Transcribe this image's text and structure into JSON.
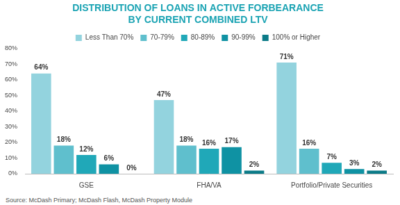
{
  "chart_data": {
    "type": "bar",
    "title": [
      "DISTRIBUTION OF LOANS IN ACTIVE FORBEARANCE",
      "BY CURRENT COMBINED LTV"
    ],
    "annotations": [
      "Source: McDash Primary; McDash Flash, McDash Property Module"
    ],
    "categories": [
      "GSE",
      "FHA/VA",
      "Portfolio/Private Securities"
    ],
    "series": [
      {
        "name": "Less Than 70%",
        "color": "#93d3de",
        "values": [
          64,
          47,
          71
        ],
        "value_labels": [
          "64%",
          "47%",
          "71%"
        ]
      },
      {
        "name": "70-79%",
        "color": "#5fbfcd",
        "values": [
          18,
          18,
          16
        ],
        "value_labels": [
          "18%",
          "18%",
          "16%"
        ]
      },
      {
        "name": "80-89%",
        "color": "#20a8b8",
        "values": [
          12,
          16,
          7
        ],
        "value_labels": [
          "12%",
          "16%",
          "7%"
        ]
      },
      {
        "name": "90-99%",
        "color": "#0f92a3",
        "values": [
          6,
          17,
          3
        ],
        "value_labels": [
          "6%",
          "17%",
          "3%"
        ]
      },
      {
        "name": "100% or Higher",
        "color": "#0b7b88",
        "values": [
          0,
          2,
          2
        ],
        "value_labels": [
          "0%",
          "2%",
          "2%"
        ]
      }
    ],
    "ylim": [
      0,
      80
    ],
    "yticks": [
      {
        "value": 0,
        "label": "0%"
      },
      {
        "value": 10,
        "label": "10%"
      },
      {
        "value": 20,
        "label": "20%"
      },
      {
        "value": 30,
        "label": "30%"
      },
      {
        "value": 40,
        "label": "40%"
      },
      {
        "value": 50,
        "label": "50%"
      },
      {
        "value": 60,
        "label": "60%"
      },
      {
        "value": 70,
        "label": "70%"
      },
      {
        "value": 80,
        "label": "80%"
      }
    ],
    "grid": false,
    "legend": "top",
    "data_labels": true
  }
}
